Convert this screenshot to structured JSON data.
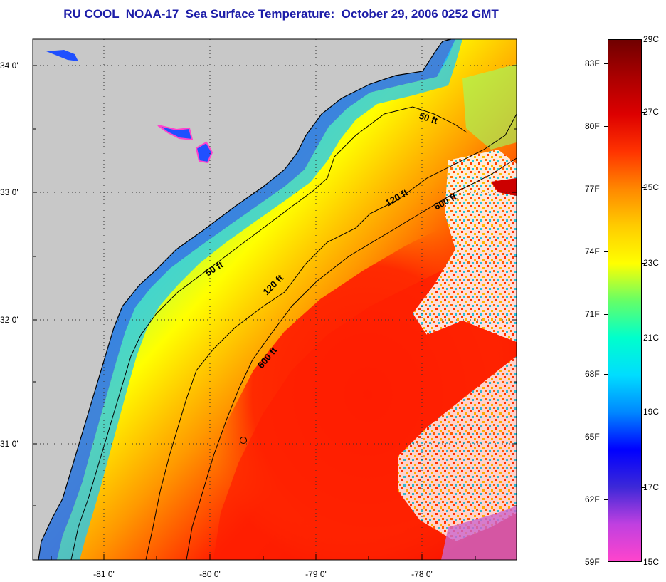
{
  "title": "RU COOL  NOAA-17  Sea Surface Temperature:  October 29, 2006 0252 GMT",
  "map": {
    "lat_ticks": [
      "34 0'",
      "33 0'",
      "32 0'",
      "31 0'"
    ],
    "lon_ticks": [
      "-81 0'",
      "-80 0'",
      "-79 0'",
      "-78 0'"
    ],
    "contour_labels": [
      {
        "id": "50ft-north",
        "text": "50 ft"
      },
      {
        "id": "120ft-north",
        "text": "120 ft"
      },
      {
        "id": "600ft-north",
        "text": "600 ft"
      },
      {
        "id": "50ft-south",
        "text": "50 ft"
      },
      {
        "id": "120ft-south",
        "text": "120 ft"
      },
      {
        "id": "600ft-south",
        "text": "600 ft"
      }
    ]
  },
  "colorbar": {
    "fahrenheit": [
      "83F",
      "80F",
      "77F",
      "74F",
      "71F",
      "68F",
      "65F",
      "62F",
      "59F"
    ],
    "celsius": [
      "29C",
      "27C",
      "25C",
      "23C",
      "21C",
      "19C",
      "17C",
      "15C"
    ],
    "colors": [
      "#ff44cc",
      "#c040e0",
      "#3c28d8",
      "#0000ff",
      "#0088ff",
      "#00ddff",
      "#00ffcc",
      "#66ff66",
      "#ffff00",
      "#ffcc00",
      "#ff8800",
      "#ff3300",
      "#dd0000",
      "#aa0000",
      "#700000"
    ]
  }
}
